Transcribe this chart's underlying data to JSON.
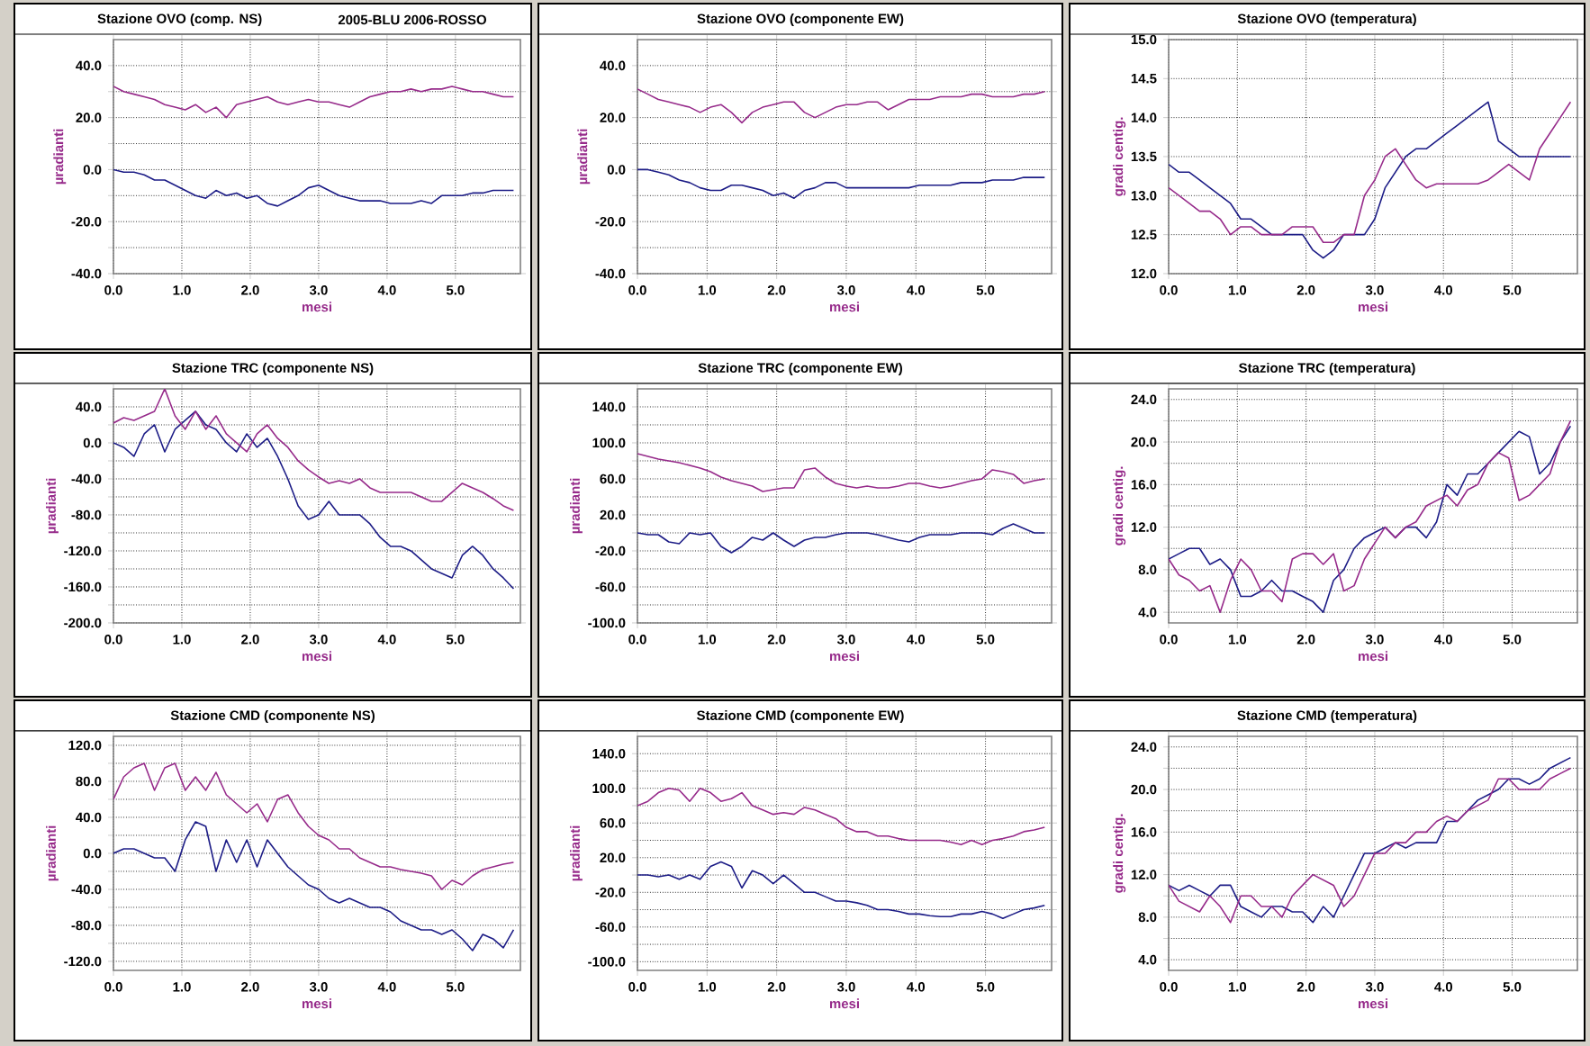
{
  "chart_data": [
    {
      "type": "line",
      "title": "Stazione OVO (comp. NS)",
      "subtitle": "2005-BLU 2006-ROSSO",
      "xlabel": "mesi",
      "ylabel": "µradianti",
      "grid": true,
      "x": [
        0,
        0.15,
        0.3,
        0.45,
        0.6,
        0.75,
        0.9,
        1.05,
        1.2,
        1.35,
        1.5,
        1.65,
        1.8,
        1.95,
        2.1,
        2.25,
        2.4,
        2.55,
        2.7,
        2.85,
        3.0,
        3.15,
        3.3,
        3.45,
        3.6,
        3.75,
        3.9,
        4.05,
        4.2,
        4.35,
        4.5,
        4.65,
        4.8,
        4.95,
        5.1,
        5.25,
        5.4,
        5.55,
        5.7,
        5.85
      ],
      "xlim": [
        0,
        5.95
      ],
      "xticks": [
        {
          "value": 0,
          "label": "0.0"
        },
        {
          "value": 1,
          "label": "1.0"
        },
        {
          "value": 2,
          "label": "2.0"
        },
        {
          "value": 3,
          "label": "3.0"
        },
        {
          "value": 4,
          "label": "4.0"
        },
        {
          "value": 5,
          "label": "5.0"
        }
      ],
      "ylim": [
        -40,
        50
      ],
      "yticks": [
        {
          "value": -40,
          "label": "-40.0"
        },
        {
          "value": -30,
          "label": null
        },
        {
          "value": -20,
          "label": "-20.0"
        },
        {
          "value": -10,
          "label": null
        },
        {
          "value": 0,
          "label": "0.0"
        },
        {
          "value": 10,
          "label": null
        },
        {
          "value": 20,
          "label": "20.0"
        },
        {
          "value": 30,
          "label": null
        },
        {
          "value": 40,
          "label": "40.0"
        }
      ],
      "series": [
        {
          "color": "#1c1c86",
          "values": [
            0,
            -1,
            -1,
            -2,
            -4,
            -4,
            -6,
            -8,
            -10,
            -11,
            -8,
            -10,
            -9,
            -11,
            -10,
            -13,
            -14,
            -12,
            -10,
            -7,
            -6,
            -8,
            -10,
            -11,
            -12,
            -12,
            -12,
            -13,
            -13,
            -13,
            -12,
            -13,
            -10,
            -10,
            -10,
            -9,
            -9,
            -8,
            -8,
            -8
          ]
        },
        {
          "color": "#962a8a",
          "values": [
            32,
            30,
            29,
            28,
            27,
            25,
            24,
            23,
            25,
            22,
            24,
            20,
            25,
            26,
            27,
            28,
            26,
            25,
            26,
            27,
            26,
            26,
            25,
            24,
            26,
            28,
            29,
            30,
            30,
            31,
            30,
            31,
            31,
            32,
            31,
            30,
            30,
            29,
            28,
            28
          ]
        }
      ]
    },
    {
      "type": "line",
      "title": "Stazione OVO (componente EW)",
      "xlabel": "mesi",
      "ylabel": "µradianti",
      "grid": true,
      "x": [
        0,
        0.15,
        0.3,
        0.45,
        0.6,
        0.75,
        0.9,
        1.05,
        1.2,
        1.35,
        1.5,
        1.65,
        1.8,
        1.95,
        2.1,
        2.25,
        2.4,
        2.55,
        2.7,
        2.85,
        3.0,
        3.15,
        3.3,
        3.45,
        3.6,
        3.75,
        3.9,
        4.05,
        4.2,
        4.35,
        4.5,
        4.65,
        4.8,
        4.95,
        5.1,
        5.25,
        5.4,
        5.55,
        5.7,
        5.85
      ],
      "xlim": [
        0,
        5.95
      ],
      "xticks": [
        {
          "value": 0,
          "label": "0.0"
        },
        {
          "value": 1,
          "label": "1.0"
        },
        {
          "value": 2,
          "label": "2.0"
        },
        {
          "value": 3,
          "label": "3.0"
        },
        {
          "value": 4,
          "label": "4.0"
        },
        {
          "value": 5,
          "label": "5.0"
        }
      ],
      "ylim": [
        -40,
        50
      ],
      "yticks": [
        {
          "value": -40,
          "label": "-40.0"
        },
        {
          "value": -30,
          "label": null
        },
        {
          "value": -20,
          "label": "-20.0"
        },
        {
          "value": -10,
          "label": null
        },
        {
          "value": 0,
          "label": "0.0"
        },
        {
          "value": 10,
          "label": null
        },
        {
          "value": 20,
          "label": "20.0"
        },
        {
          "value": 30,
          "label": null
        },
        {
          "value": 40,
          "label": "40.0"
        }
      ],
      "series": [
        {
          "color": "#1c1c86",
          "values": [
            0,
            0,
            -1,
            -2,
            -4,
            -5,
            -7,
            -8,
            -8,
            -6,
            -6,
            -7,
            -8,
            -10,
            -9,
            -11,
            -8,
            -7,
            -5,
            -5,
            -7,
            -7,
            -7,
            -7,
            -7,
            -7,
            -7,
            -6,
            -6,
            -6,
            -6,
            -5,
            -5,
            -5,
            -4,
            -4,
            -4,
            -3,
            -3,
            -3
          ]
        },
        {
          "color": "#962a8a",
          "values": [
            31,
            29,
            27,
            26,
            25,
            24,
            22,
            24,
            25,
            22,
            18,
            22,
            24,
            25,
            26,
            26,
            22,
            20,
            22,
            24,
            25,
            25,
            26,
            26,
            23,
            25,
            27,
            27,
            27,
            28,
            28,
            28,
            29,
            29,
            28,
            28,
            28,
            29,
            29,
            30
          ]
        }
      ]
    },
    {
      "type": "line",
      "title": "Stazione OVO (temperatura)",
      "xlabel": "mesi",
      "ylabel": "gradi centig.",
      "grid": true,
      "x": [
        0,
        0.15,
        0.3,
        0.45,
        0.6,
        0.75,
        0.9,
        1.05,
        1.2,
        1.35,
        1.5,
        1.65,
        1.8,
        1.95,
        2.1,
        2.25,
        2.4,
        2.55,
        2.7,
        2.85,
        3.0,
        3.15,
        3.3,
        3.45,
        3.6,
        3.75,
        3.9,
        4.05,
        4.2,
        4.35,
        4.5,
        4.65,
        4.8,
        4.95,
        5.1,
        5.25,
        5.4,
        5.55,
        5.7,
        5.85
      ],
      "xlim": [
        0,
        5.95
      ],
      "xticks": [
        {
          "value": 0,
          "label": "0.0"
        },
        {
          "value": 1,
          "label": "1.0"
        },
        {
          "value": 2,
          "label": "2.0"
        },
        {
          "value": 3,
          "label": "3.0"
        },
        {
          "value": 4,
          "label": "4.0"
        },
        {
          "value": 5,
          "label": "5.0"
        }
      ],
      "ylim": [
        12,
        15
      ],
      "yticks": [
        {
          "value": 12,
          "label": "12.0"
        },
        {
          "value": 12.5,
          "label": "12.5"
        },
        {
          "value": 13,
          "label": "13.0"
        },
        {
          "value": 13.5,
          "label": "13.5"
        },
        {
          "value": 14,
          "label": "14.0"
        },
        {
          "value": 14.5,
          "label": "14.5"
        },
        {
          "value": 15,
          "label": "15.0"
        }
      ],
      "series": [
        {
          "color": "#1c1c86",
          "values": [
            13.4,
            13.3,
            13.3,
            13.2,
            13.1,
            13.0,
            12.9,
            12.7,
            12.7,
            12.6,
            12.5,
            12.5,
            12.5,
            12.5,
            12.3,
            12.2,
            12.3,
            12.5,
            12.5,
            12.5,
            12.7,
            13.1,
            13.3,
            13.5,
            13.6,
            13.6,
            13.7,
            13.8,
            13.9,
            14.0,
            14.1,
            14.2,
            13.7,
            13.6,
            13.5,
            13.5,
            13.5,
            13.5,
            13.5,
            13.5
          ]
        },
        {
          "color": "#962a8a",
          "values": [
            13.1,
            13.0,
            12.9,
            12.8,
            12.8,
            12.7,
            12.5,
            12.6,
            12.6,
            12.5,
            12.5,
            12.5,
            12.6,
            12.6,
            12.6,
            12.4,
            12.4,
            12.5,
            12.5,
            13.0,
            13.2,
            13.5,
            13.6,
            13.4,
            13.2,
            13.1,
            13.15,
            13.15,
            13.15,
            13.15,
            13.15,
            13.2,
            13.3,
            13.4,
            13.3,
            13.2,
            13.6,
            13.8,
            14.0,
            14.2
          ]
        }
      ]
    },
    {
      "type": "line",
      "title": "Stazione TRC (componente NS)",
      "xlabel": "mesi",
      "ylabel": "µradianti",
      "grid": true,
      "x": [
        0,
        0.15,
        0.3,
        0.45,
        0.6,
        0.75,
        0.9,
        1.05,
        1.2,
        1.35,
        1.5,
        1.65,
        1.8,
        1.95,
        2.1,
        2.25,
        2.4,
        2.55,
        2.7,
        2.85,
        3.0,
        3.15,
        3.3,
        3.45,
        3.6,
        3.75,
        3.9,
        4.05,
        4.2,
        4.35,
        4.5,
        4.65,
        4.8,
        4.95,
        5.1,
        5.25,
        5.4,
        5.55,
        5.7,
        5.85
      ],
      "xlim": [
        0,
        5.95
      ],
      "xticks": [
        {
          "value": 0,
          "label": "0.0"
        },
        {
          "value": 1,
          "label": "1.0"
        },
        {
          "value": 2,
          "label": "2.0"
        },
        {
          "value": 3,
          "label": "3.0"
        },
        {
          "value": 4,
          "label": "4.0"
        },
        {
          "value": 5,
          "label": "5.0"
        }
      ],
      "ylim": [
        -200,
        60
      ],
      "yticks": [
        {
          "value": -200,
          "label": "-200.0"
        },
        {
          "value": -180,
          "label": null
        },
        {
          "value": -160,
          "label": "-160.0"
        },
        {
          "value": -140,
          "label": null
        },
        {
          "value": -120,
          "label": "-120.0"
        },
        {
          "value": -100,
          "label": null
        },
        {
          "value": -80,
          "label": "-80.0"
        },
        {
          "value": -60,
          "label": null
        },
        {
          "value": -40,
          "label": "-40.0"
        },
        {
          "value": -20,
          "label": null
        },
        {
          "value": 0,
          "label": "0.0"
        },
        {
          "value": 20,
          "label": null
        },
        {
          "value": 40,
          "label": "40.0"
        }
      ],
      "series": [
        {
          "color": "#1c1c86",
          "values": [
            0,
            -5,
            -15,
            10,
            20,
            -10,
            15,
            25,
            35,
            20,
            15,
            0,
            -10,
            10,
            -5,
            5,
            -15,
            -40,
            -70,
            -85,
            -80,
            -65,
            -80,
            -80,
            -80,
            -90,
            -105,
            -115,
            -115,
            -120,
            -130,
            -140,
            -145,
            -150,
            -125,
            -115,
            -125,
            -140,
            -150,
            -162
          ]
        },
        {
          "color": "#962a8a",
          "values": [
            22,
            28,
            25,
            30,
            35,
            60,
            30,
            15,
            35,
            15,
            30,
            10,
            0,
            -10,
            10,
            20,
            5,
            -5,
            -20,
            -30,
            -38,
            -45,
            -42,
            -45,
            -40,
            -50,
            -55,
            -55,
            -55,
            -55,
            -60,
            -65,
            -65,
            -55,
            -45,
            -50,
            -55,
            -62,
            -70,
            -75
          ]
        }
      ]
    },
    {
      "type": "line",
      "title": "Stazione TRC (componente EW)",
      "xlabel": "mesi",
      "ylabel": "µradianti",
      "grid": true,
      "x": [
        0,
        0.15,
        0.3,
        0.45,
        0.6,
        0.75,
        0.9,
        1.05,
        1.2,
        1.35,
        1.5,
        1.65,
        1.8,
        1.95,
        2.1,
        2.25,
        2.4,
        2.55,
        2.7,
        2.85,
        3.0,
        3.15,
        3.3,
        3.45,
        3.6,
        3.75,
        3.9,
        4.05,
        4.2,
        4.35,
        4.5,
        4.65,
        4.8,
        4.95,
        5.1,
        5.25,
        5.4,
        5.55,
        5.7,
        5.85
      ],
      "xlim": [
        0,
        5.95
      ],
      "xticks": [
        {
          "value": 0,
          "label": "0.0"
        },
        {
          "value": 1,
          "label": "1.0"
        },
        {
          "value": 2,
          "label": "2.0"
        },
        {
          "value": 3,
          "label": "3.0"
        },
        {
          "value": 4,
          "label": "4.0"
        },
        {
          "value": 5,
          "label": "5.0"
        }
      ],
      "ylim": [
        -100,
        160
      ],
      "yticks": [
        {
          "value": -100,
          "label": "-100.0"
        },
        {
          "value": -80,
          "label": null
        },
        {
          "value": -60,
          "label": "-60.0"
        },
        {
          "value": -40,
          "label": null
        },
        {
          "value": -20,
          "label": "-20.0"
        },
        {
          "value": 0,
          "label": null
        },
        {
          "value": 20,
          "label": "20.0"
        },
        {
          "value": 40,
          "label": null
        },
        {
          "value": 60,
          "label": "60.0"
        },
        {
          "value": 80,
          "label": null
        },
        {
          "value": 100,
          "label": "100.0"
        },
        {
          "value": 120,
          "label": null
        },
        {
          "value": 140,
          "label": "140.0"
        }
      ],
      "series": [
        {
          "color": "#1c1c86",
          "values": [
            0,
            -2,
            -2,
            -10,
            -12,
            0,
            -2,
            0,
            -15,
            -22,
            -15,
            -5,
            -8,
            0,
            -8,
            -15,
            -8,
            -5,
            -5,
            -2,
            0,
            0,
            0,
            -2,
            -5,
            -8,
            -10,
            -5,
            -2,
            -2,
            -2,
            0,
            0,
            0,
            -2,
            5,
            10,
            5,
            0,
            0
          ]
        },
        {
          "color": "#962a8a",
          "values": [
            88,
            85,
            82,
            80,
            78,
            75,
            72,
            68,
            62,
            58,
            55,
            52,
            46,
            48,
            50,
            50,
            70,
            72,
            62,
            55,
            52,
            50,
            52,
            50,
            50,
            52,
            55,
            55,
            52,
            50,
            52,
            55,
            58,
            60,
            70,
            68,
            65,
            55,
            58,
            60
          ]
        }
      ]
    },
    {
      "type": "line",
      "title": "Stazione TRC (temperatura)",
      "xlabel": "mesi",
      "ylabel": "gradi centig.",
      "grid": true,
      "x": [
        0,
        0.15,
        0.3,
        0.45,
        0.6,
        0.75,
        0.9,
        1.05,
        1.2,
        1.35,
        1.5,
        1.65,
        1.8,
        1.95,
        2.1,
        2.25,
        2.4,
        2.55,
        2.7,
        2.85,
        3.0,
        3.15,
        3.3,
        3.45,
        3.6,
        3.75,
        3.9,
        4.05,
        4.2,
        4.35,
        4.5,
        4.65,
        4.8,
        4.95,
        5.1,
        5.25,
        5.4,
        5.55,
        5.7,
        5.85
      ],
      "xlim": [
        0,
        5.95
      ],
      "xticks": [
        {
          "value": 0,
          "label": "0.0"
        },
        {
          "value": 1,
          "label": "1.0"
        },
        {
          "value": 2,
          "label": "2.0"
        },
        {
          "value": 3,
          "label": "3.0"
        },
        {
          "value": 4,
          "label": "4.0"
        },
        {
          "value": 5,
          "label": "5.0"
        }
      ],
      "ylim": [
        3,
        25
      ],
      "yticks": [
        {
          "value": 4,
          "label": "4.0"
        },
        {
          "value": 6,
          "label": null
        },
        {
          "value": 8,
          "label": "8.0"
        },
        {
          "value": 10,
          "label": null
        },
        {
          "value": 12,
          "label": "12.0"
        },
        {
          "value": 14,
          "label": null
        },
        {
          "value": 16,
          "label": "16.0"
        },
        {
          "value": 18,
          "label": null
        },
        {
          "value": 20,
          "label": "20.0"
        },
        {
          "value": 22,
          "label": null
        },
        {
          "value": 24,
          "label": "24.0"
        }
      ],
      "series": [
        {
          "color": "#1c1c86",
          "values": [
            9,
            9.5,
            10,
            10,
            8.5,
            9,
            8,
            5.5,
            5.5,
            6,
            7,
            6,
            6,
            5.5,
            5,
            4,
            7,
            8,
            10,
            11,
            11.5,
            12,
            11,
            12,
            12,
            11,
            12.5,
            16,
            15,
            17,
            17,
            18,
            19,
            20,
            21,
            20.5,
            17,
            18,
            20,
            21.5
          ]
        },
        {
          "color": "#962a8a",
          "values": [
            9,
            7.5,
            7,
            6,
            6.5,
            4,
            7,
            9,
            8,
            6,
            6,
            5,
            9,
            9.5,
            9.5,
            8.5,
            9.5,
            6,
            6.5,
            9,
            10.5,
            12,
            11,
            12,
            12.5,
            14,
            14.5,
            15,
            14,
            15.5,
            16,
            18,
            19,
            18.5,
            14.5,
            15,
            16,
            17,
            20,
            22
          ]
        }
      ]
    },
    {
      "type": "line",
      "title": "Stazione CMD (componente NS)",
      "xlabel": "mesi",
      "ylabel": "µradianti",
      "grid": true,
      "x": [
        0,
        0.15,
        0.3,
        0.45,
        0.6,
        0.75,
        0.9,
        1.05,
        1.2,
        1.35,
        1.5,
        1.65,
        1.8,
        1.95,
        2.1,
        2.25,
        2.4,
        2.55,
        2.7,
        2.85,
        3.0,
        3.15,
        3.3,
        3.45,
        3.6,
        3.75,
        3.9,
        4.05,
        4.2,
        4.35,
        4.5,
        4.65,
        4.8,
        4.95,
        5.1,
        5.25,
        5.4,
        5.55,
        5.7,
        5.85
      ],
      "xlim": [
        0,
        5.95
      ],
      "xticks": [
        {
          "value": 0,
          "label": "0.0"
        },
        {
          "value": 1,
          "label": "1.0"
        },
        {
          "value": 2,
          "label": "2.0"
        },
        {
          "value": 3,
          "label": "3.0"
        },
        {
          "value": 4,
          "label": "4.0"
        },
        {
          "value": 5,
          "label": "5.0"
        }
      ],
      "ylim": [
        -130,
        130
      ],
      "yticks": [
        {
          "value": -120,
          "label": "-120.0"
        },
        {
          "value": -100,
          "label": null
        },
        {
          "value": -80,
          "label": "-80.0"
        },
        {
          "value": -60,
          "label": null
        },
        {
          "value": -40,
          "label": "-40.0"
        },
        {
          "value": -20,
          "label": null
        },
        {
          "value": 0,
          "label": "0.0"
        },
        {
          "value": 20,
          "label": null
        },
        {
          "value": 40,
          "label": "40.0"
        },
        {
          "value": 60,
          "label": null
        },
        {
          "value": 80,
          "label": "80.0"
        },
        {
          "value": 100,
          "label": null
        },
        {
          "value": 120,
          "label": "120.0"
        }
      ],
      "series": [
        {
          "color": "#1c1c86",
          "values": [
            0,
            5,
            5,
            0,
            -5,
            -5,
            -20,
            15,
            35,
            30,
            -20,
            15,
            -10,
            15,
            -15,
            15,
            0,
            -15,
            -25,
            -35,
            -40,
            -50,
            -55,
            -50,
            -55,
            -60,
            -60,
            -65,
            -75,
            -80,
            -85,
            -85,
            -90,
            -85,
            -95,
            -108,
            -90,
            -95,
            -105,
            -85
          ]
        },
        {
          "color": "#962a8a",
          "values": [
            60,
            85,
            95,
            100,
            70,
            95,
            100,
            70,
            85,
            70,
            90,
            65,
            55,
            45,
            55,
            35,
            60,
            65,
            45,
            30,
            20,
            15,
            5,
            5,
            -5,
            -10,
            -15,
            -15,
            -18,
            -20,
            -22,
            -25,
            -40,
            -30,
            -35,
            -25,
            -18,
            -15,
            -12,
            -10
          ]
        }
      ]
    },
    {
      "type": "line",
      "title": "Stazione CMD (componente EW)",
      "xlabel": "mesi",
      "ylabel": "µradianti",
      "grid": true,
      "x": [
        0,
        0.15,
        0.3,
        0.45,
        0.6,
        0.75,
        0.9,
        1.05,
        1.2,
        1.35,
        1.5,
        1.65,
        1.8,
        1.95,
        2.1,
        2.25,
        2.4,
        2.55,
        2.7,
        2.85,
        3.0,
        3.15,
        3.3,
        3.45,
        3.6,
        3.75,
        3.9,
        4.05,
        4.2,
        4.35,
        4.5,
        4.65,
        4.8,
        4.95,
        5.1,
        5.25,
        5.4,
        5.55,
        5.7,
        5.85
      ],
      "xlim": [
        0,
        5.95
      ],
      "xticks": [
        {
          "value": 0,
          "label": "0.0"
        },
        {
          "value": 1,
          "label": "1.0"
        },
        {
          "value": 2,
          "label": "2.0"
        },
        {
          "value": 3,
          "label": "3.0"
        },
        {
          "value": 4,
          "label": "4.0"
        },
        {
          "value": 5,
          "label": "5.0"
        }
      ],
      "ylim": [
        -110,
        160
      ],
      "yticks": [
        {
          "value": -100,
          "label": "-100.0"
        },
        {
          "value": -80,
          "label": null
        },
        {
          "value": -60,
          "label": "-60.0"
        },
        {
          "value": -40,
          "label": null
        },
        {
          "value": -20,
          "label": "-20.0"
        },
        {
          "value": 0,
          "label": null
        },
        {
          "value": 20,
          "label": "20.0"
        },
        {
          "value": 40,
          "label": null
        },
        {
          "value": 60,
          "label": "60.0"
        },
        {
          "value": 80,
          "label": null
        },
        {
          "value": 100,
          "label": "100.0"
        },
        {
          "value": 120,
          "label": null
        },
        {
          "value": 140,
          "label": "140.0"
        }
      ],
      "series": [
        {
          "color": "#1c1c86",
          "values": [
            0,
            0,
            -2,
            0,
            -5,
            0,
            -5,
            10,
            15,
            10,
            -15,
            5,
            0,
            -10,
            0,
            -10,
            -20,
            -20,
            -25,
            -30,
            -30,
            -32,
            -35,
            -40,
            -40,
            -42,
            -45,
            -45,
            -47,
            -48,
            -48,
            -45,
            -45,
            -42,
            -45,
            -50,
            -45,
            -40,
            -38,
            -35
          ]
        },
        {
          "color": "#962a8a",
          "values": [
            80,
            85,
            95,
            100,
            98,
            85,
            100,
            95,
            85,
            88,
            95,
            80,
            75,
            70,
            72,
            70,
            78,
            75,
            70,
            65,
            55,
            50,
            50,
            45,
            45,
            42,
            40,
            40,
            40,
            40,
            38,
            35,
            40,
            35,
            40,
            42,
            45,
            50,
            52,
            55
          ]
        }
      ]
    },
    {
      "type": "line",
      "title": "Stazione CMD (temperatura)",
      "xlabel": "mesi",
      "ylabel": "gradi centig.",
      "grid": true,
      "x": [
        0,
        0.15,
        0.3,
        0.45,
        0.6,
        0.75,
        0.9,
        1.05,
        1.2,
        1.35,
        1.5,
        1.65,
        1.8,
        1.95,
        2.1,
        2.25,
        2.4,
        2.55,
        2.7,
        2.85,
        3.0,
        3.15,
        3.3,
        3.45,
        3.6,
        3.75,
        3.9,
        4.05,
        4.2,
        4.35,
        4.5,
        4.65,
        4.8,
        4.95,
        5.1,
        5.25,
        5.4,
        5.55,
        5.7,
        5.85
      ],
      "xlim": [
        0,
        5.95
      ],
      "xticks": [
        {
          "value": 0,
          "label": "0.0"
        },
        {
          "value": 1,
          "label": "1.0"
        },
        {
          "value": 2,
          "label": "2.0"
        },
        {
          "value": 3,
          "label": "3.0"
        },
        {
          "value": 4,
          "label": "4.0"
        },
        {
          "value": 5,
          "label": "5.0"
        }
      ],
      "ylim": [
        3,
        25
      ],
      "yticks": [
        {
          "value": 4,
          "label": "4.0"
        },
        {
          "value": 6,
          "label": null
        },
        {
          "value": 8,
          "label": "8.0"
        },
        {
          "value": 10,
          "label": null
        },
        {
          "value": 12,
          "label": "12.0"
        },
        {
          "value": 14,
          "label": null
        },
        {
          "value": 16,
          "label": "16.0"
        },
        {
          "value": 18,
          "label": null
        },
        {
          "value": 20,
          "label": "20.0"
        },
        {
          "value": 22,
          "label": null
        },
        {
          "value": 24,
          "label": "24.0"
        }
      ],
      "series": [
        {
          "color": "#1c1c86",
          "values": [
            11,
            10.5,
            11,
            10.5,
            10,
            11,
            11,
            9,
            8.5,
            8,
            9,
            9,
            8.5,
            8.5,
            7.5,
            9,
            8,
            10,
            12,
            14,
            14,
            14.5,
            15,
            14.5,
            15,
            15,
            15,
            17,
            17,
            18,
            19,
            19.5,
            20,
            21,
            21,
            20.5,
            21,
            22,
            22.5,
            23
          ]
        },
        {
          "color": "#962a8a",
          "values": [
            11,
            9.5,
            9,
            8.5,
            10,
            9,
            7.5,
            10,
            10,
            9,
            9,
            8,
            10,
            11,
            12,
            11.5,
            11,
            9,
            10,
            12,
            14,
            14,
            15,
            15,
            16,
            16,
            17,
            17.5,
            17,
            18,
            18.5,
            19,
            21,
            21,
            20,
            20,
            20,
            21,
            21.5,
            22
          ]
        }
      ]
    }
  ]
}
